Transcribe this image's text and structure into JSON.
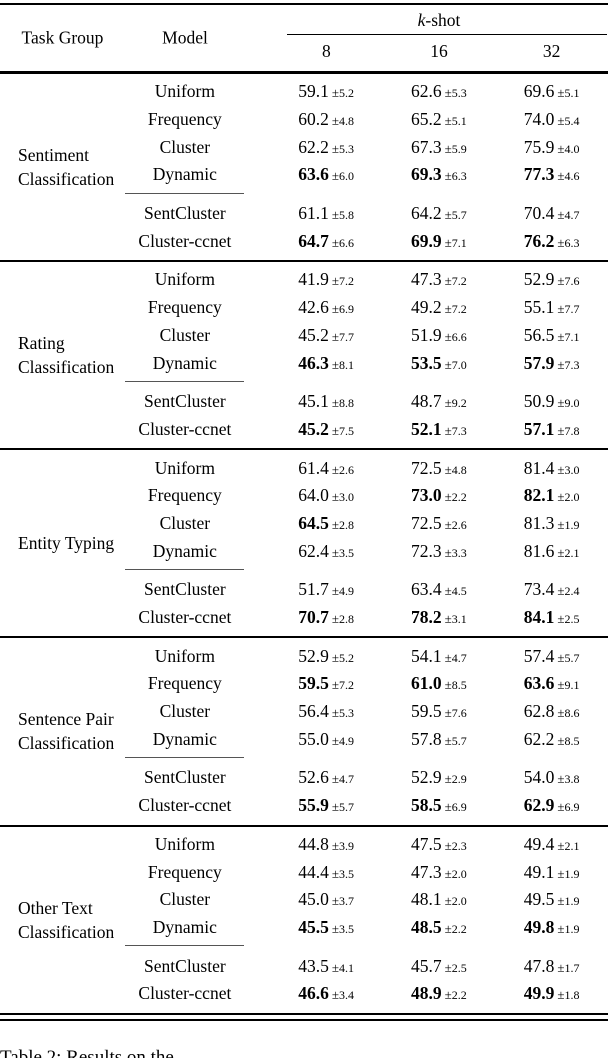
{
  "header": {
    "task_group": "Task Group",
    "model": "Model",
    "kshot_k": "k",
    "kshot_suffix": "-shot",
    "cols": [
      "8",
      "16",
      "32"
    ]
  },
  "groups": [
    {
      "name_lines": [
        "Sentiment",
        "Classification"
      ],
      "main_rows": [
        {
          "model": "Uniform",
          "values": [
            {
              "v": "59.1",
              "sd": "5.2",
              "bold": false
            },
            {
              "v": "62.6",
              "sd": "5.3",
              "bold": false
            },
            {
              "v": "69.6",
              "sd": "5.1",
              "bold": false
            }
          ]
        },
        {
          "model": "Frequency",
          "values": [
            {
              "v": "60.2",
              "sd": "4.8",
              "bold": false
            },
            {
              "v": "65.2",
              "sd": "5.1",
              "bold": false
            },
            {
              "v": "74.0",
              "sd": "5.4",
              "bold": false
            }
          ]
        },
        {
          "model": "Cluster",
          "values": [
            {
              "v": "62.2",
              "sd": "5.3",
              "bold": false
            },
            {
              "v": "67.3",
              "sd": "5.9",
              "bold": false
            },
            {
              "v": "75.9",
              "sd": "4.0",
              "bold": false
            }
          ]
        },
        {
          "model": "Dynamic",
          "values": [
            {
              "v": "63.6",
              "sd": "6.0",
              "bold": true
            },
            {
              "v": "69.3",
              "sd": "6.3",
              "bold": true
            },
            {
              "v": "77.3",
              "sd": "4.6",
              "bold": true
            }
          ]
        }
      ],
      "extra_rows": [
        {
          "model": "SentCluster",
          "values": [
            {
              "v": "61.1",
              "sd": "5.8",
              "bold": false
            },
            {
              "v": "64.2",
              "sd": "5.7",
              "bold": false
            },
            {
              "v": "70.4",
              "sd": "4.7",
              "bold": false
            }
          ]
        },
        {
          "model": "Cluster-ccnet",
          "values": [
            {
              "v": "64.7",
              "sd": "6.6",
              "bold": true
            },
            {
              "v": "69.9",
              "sd": "7.1",
              "bold": true
            },
            {
              "v": "76.2",
              "sd": "6.3",
              "bold": true
            }
          ]
        }
      ]
    },
    {
      "name_lines": [
        "Rating",
        "Classification"
      ],
      "main_rows": [
        {
          "model": "Uniform",
          "values": [
            {
              "v": "41.9",
              "sd": "7.2",
              "bold": false
            },
            {
              "v": "47.3",
              "sd": "7.2",
              "bold": false
            },
            {
              "v": "52.9",
              "sd": "7.6",
              "bold": false
            }
          ]
        },
        {
          "model": "Frequency",
          "values": [
            {
              "v": "42.6",
              "sd": "6.9",
              "bold": false
            },
            {
              "v": "49.2",
              "sd": "7.2",
              "bold": false
            },
            {
              "v": "55.1",
              "sd": "7.7",
              "bold": false
            }
          ]
        },
        {
          "model": "Cluster",
          "values": [
            {
              "v": "45.2",
              "sd": "7.7",
              "bold": false
            },
            {
              "v": "51.9",
              "sd": "6.6",
              "bold": false
            },
            {
              "v": "56.5",
              "sd": "7.1",
              "bold": false
            }
          ]
        },
        {
          "model": "Dynamic",
          "values": [
            {
              "v": "46.3",
              "sd": "8.1",
              "bold": true
            },
            {
              "v": "53.5",
              "sd": "7.0",
              "bold": true
            },
            {
              "v": "57.9",
              "sd": "7.3",
              "bold": true
            }
          ]
        }
      ],
      "extra_rows": [
        {
          "model": "SentCluster",
          "values": [
            {
              "v": "45.1",
              "sd": "8.8",
              "bold": false
            },
            {
              "v": "48.7",
              "sd": "9.2",
              "bold": false
            },
            {
              "v": "50.9",
              "sd": "9.0",
              "bold": false
            }
          ]
        },
        {
          "model": "Cluster-ccnet",
          "values": [
            {
              "v": "45.2",
              "sd": "7.5",
              "bold": true
            },
            {
              "v": "52.1",
              "sd": "7.3",
              "bold": true
            },
            {
              "v": "57.1",
              "sd": "7.8",
              "bold": true
            }
          ]
        }
      ]
    },
    {
      "name_lines": [
        "Entity Typing"
      ],
      "main_rows": [
        {
          "model": "Uniform",
          "values": [
            {
              "v": "61.4",
              "sd": "2.6",
              "bold": false
            },
            {
              "v": "72.5",
              "sd": "4.8",
              "bold": false
            },
            {
              "v": "81.4",
              "sd": "3.0",
              "bold": false
            }
          ]
        },
        {
          "model": "Frequency",
          "values": [
            {
              "v": "64.0",
              "sd": "3.0",
              "bold": false
            },
            {
              "v": "73.0",
              "sd": "2.2",
              "bold": true
            },
            {
              "v": "82.1",
              "sd": "2.0",
              "bold": true
            }
          ]
        },
        {
          "model": "Cluster",
          "values": [
            {
              "v": "64.5",
              "sd": "2.8",
              "bold": true
            },
            {
              "v": "72.5",
              "sd": "2.6",
              "bold": false
            },
            {
              "v": "81.3",
              "sd": "1.9",
              "bold": false
            }
          ]
        },
        {
          "model": "Dynamic",
          "values": [
            {
              "v": "62.4",
              "sd": "3.5",
              "bold": false
            },
            {
              "v": "72.3",
              "sd": "3.3",
              "bold": false
            },
            {
              "v": "81.6",
              "sd": "2.1",
              "bold": false
            }
          ]
        }
      ],
      "extra_rows": [
        {
          "model": "SentCluster",
          "values": [
            {
              "v": "51.7",
              "sd": "4.9",
              "bold": false
            },
            {
              "v": "63.4",
              "sd": "4.5",
              "bold": false
            },
            {
              "v": "73.4",
              "sd": "2.4",
              "bold": false
            }
          ]
        },
        {
          "model": "Cluster-ccnet",
          "values": [
            {
              "v": "70.7",
              "sd": "2.8",
              "bold": true
            },
            {
              "v": "78.2",
              "sd": "3.1",
              "bold": true
            },
            {
              "v": "84.1",
              "sd": "2.5",
              "bold": true
            }
          ]
        }
      ]
    },
    {
      "name_lines": [
        "Sentence Pair",
        "Classification"
      ],
      "main_rows": [
        {
          "model": "Uniform",
          "values": [
            {
              "v": "52.9",
              "sd": "5.2",
              "bold": false
            },
            {
              "v": "54.1",
              "sd": "4.7",
              "bold": false
            },
            {
              "v": "57.4",
              "sd": "5.7",
              "bold": false
            }
          ]
        },
        {
          "model": "Frequency",
          "values": [
            {
              "v": "59.5",
              "sd": "7.2",
              "bold": true
            },
            {
              "v": "61.0",
              "sd": "8.5",
              "bold": true
            },
            {
              "v": "63.6",
              "sd": "9.1",
              "bold": true
            }
          ]
        },
        {
          "model": "Cluster",
          "values": [
            {
              "v": "56.4",
              "sd": "5.3",
              "bold": false
            },
            {
              "v": "59.5",
              "sd": "7.6",
              "bold": false
            },
            {
              "v": "62.8",
              "sd": "8.6",
              "bold": false
            }
          ]
        },
        {
          "model": "Dynamic",
          "values": [
            {
              "v": "55.0",
              "sd": "4.9",
              "bold": false
            },
            {
              "v": "57.8",
              "sd": "5.7",
              "bold": false
            },
            {
              "v": "62.2",
              "sd": "8.5",
              "bold": false
            }
          ]
        }
      ],
      "extra_rows": [
        {
          "model": "SentCluster",
          "values": [
            {
              "v": "52.6",
              "sd": "4.7",
              "bold": false
            },
            {
              "v": "52.9",
              "sd": "2.9",
              "bold": false
            },
            {
              "v": "54.0",
              "sd": "3.8",
              "bold": false
            }
          ]
        },
        {
          "model": "Cluster-ccnet",
          "values": [
            {
              "v": "55.9",
              "sd": "5.7",
              "bold": true
            },
            {
              "v": "58.5",
              "sd": "6.9",
              "bold": true
            },
            {
              "v": "62.9",
              "sd": "6.9",
              "bold": true
            }
          ]
        }
      ]
    },
    {
      "name_lines": [
        "Other Text",
        "Classification"
      ],
      "main_rows": [
        {
          "model": "Uniform",
          "values": [
            {
              "v": "44.8",
              "sd": "3.9",
              "bold": false
            },
            {
              "v": "47.5",
              "sd": "2.3",
              "bold": false
            },
            {
              "v": "49.4",
              "sd": "2.1",
              "bold": false
            }
          ]
        },
        {
          "model": "Frequency",
          "values": [
            {
              "v": "44.4",
              "sd": "3.5",
              "bold": false
            },
            {
              "v": "47.3",
              "sd": "2.0",
              "bold": false
            },
            {
              "v": "49.1",
              "sd": "1.9",
              "bold": false
            }
          ]
        },
        {
          "model": "Cluster",
          "values": [
            {
              "v": "45.0",
              "sd": "3.7",
              "bold": false
            },
            {
              "v": "48.1",
              "sd": "2.0",
              "bold": false
            },
            {
              "v": "49.5",
              "sd": "1.9",
              "bold": false
            }
          ]
        },
        {
          "model": "Dynamic",
          "values": [
            {
              "v": "45.5",
              "sd": "3.5",
              "bold": true
            },
            {
              "v": "48.5",
              "sd": "2.2",
              "bold": true
            },
            {
              "v": "49.8",
              "sd": "1.9",
              "bold": true
            }
          ]
        }
      ],
      "extra_rows": [
        {
          "model": "SentCluster",
          "values": [
            {
              "v": "43.5",
              "sd": "4.1",
              "bold": false
            },
            {
              "v": "45.7",
              "sd": "2.5",
              "bold": false
            },
            {
              "v": "47.8",
              "sd": "1.7",
              "bold": false
            }
          ]
        },
        {
          "model": "Cluster-ccnet",
          "values": [
            {
              "v": "46.6",
              "sd": "3.4",
              "bold": true
            },
            {
              "v": "48.9",
              "sd": "2.2",
              "bold": true
            },
            {
              "v": "49.9",
              "sd": "1.8",
              "bold": true
            }
          ]
        }
      ]
    }
  ],
  "caption_partial": "Table 2: Results on the"
}
